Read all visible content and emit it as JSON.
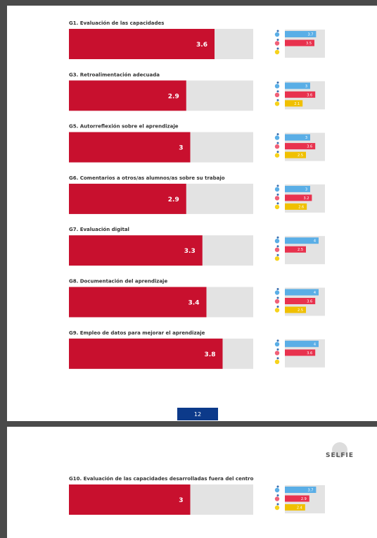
{
  "sections": [
    {
      "title": "G1. Evaluación de las capacidades",
      "value": 3.6,
      "students": 3.7,
      "teachers": 3.5,
      "leaders": null
    },
    {
      "title": "G3. Retroalimentación adecuada",
      "value": 2.9,
      "students": 3,
      "teachers": 3.6,
      "leaders": 2.1
    },
    {
      "title": "G5. Autorreflexión sobre el aprendizaje",
      "value": 3,
      "students": 3,
      "teachers": 3.6,
      "leaders": 2.5
    },
    {
      "title": "G6. Comentarios a otros/as alumnos/as sobre su trabajo",
      "value": 2.9,
      "students": 3,
      "teachers": 3.2,
      "leaders": 2.6
    },
    {
      "title": "G7. Evaluación digital",
      "value": 3.3,
      "students": 4,
      "teachers": 2.5,
      "leaders": null
    },
    {
      "title": "G8. Documentación del aprendizaje",
      "value": 3.4,
      "students": 4,
      "teachers": 3.6,
      "leaders": 2.5
    },
    {
      "title": "G9. Empleo de datos para mejorar el aprendizaje",
      "value": 3.8,
      "students": 4,
      "teachers": 3.6,
      "leaders": null
    },
    {
      "title": "G10. Evaluación de las capacidades desarrolladas fuera del centro",
      "value": 3,
      "students": 3.7,
      "teachers": 2.9,
      "leaders": 2.4
    }
  ],
  "page_number": "12",
  "logo": "SELFIE"
}
